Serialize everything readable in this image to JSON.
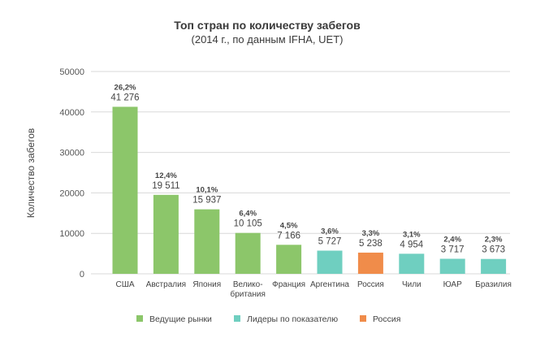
{
  "chart_data": {
    "type": "bar",
    "title": "Топ стран по количеству забегов",
    "subtitle": "(2014 г., по данным IFHA, UET)",
    "ylabel": "Количество забегов",
    "xlabel": "",
    "ylim": [
      0,
      50000
    ],
    "yticks": [
      "0",
      "10000",
      "20000",
      "30000",
      "40000",
      "50000"
    ],
    "grid": true,
    "legend_position": "bottom",
    "categories": [
      [
        "США"
      ],
      [
        "Австралия"
      ],
      [
        "Япония"
      ],
      [
        "Велико-",
        "британия"
      ],
      [
        "Франция"
      ],
      [
        "Аргентина"
      ],
      [
        "Россия"
      ],
      [
        "Чили"
      ],
      [
        "ЮАР"
      ],
      [
        "Бразилия"
      ]
    ],
    "values": [
      41276,
      19511,
      15937,
      10105,
      7166,
      5727,
      5238,
      4954,
      3717,
      3673
    ],
    "value_labels": [
      "41 276",
      "19 511",
      "15 937",
      "10 105",
      "7 166",
      "5 727",
      "5 238",
      "4 954",
      "3 717",
      "3 673"
    ],
    "percent_labels": [
      "26,2%",
      "12,4%",
      "10,1%",
      "6,4%",
      "4,5%",
      "3,6%",
      "3,3%",
      "3,1%",
      "2,4%",
      "2,3%"
    ],
    "groups": [
      0,
      0,
      0,
      0,
      0,
      1,
      2,
      1,
      1,
      1
    ],
    "legend": [
      {
        "name": "Ведущие рынки",
        "color": "#8cc66a"
      },
      {
        "name": "Лидеры по показателю",
        "color": "#6fcfc0"
      },
      {
        "name": "Россия",
        "color": "#f08c4a"
      }
    ],
    "grid_color": "#d9d9d9"
  }
}
